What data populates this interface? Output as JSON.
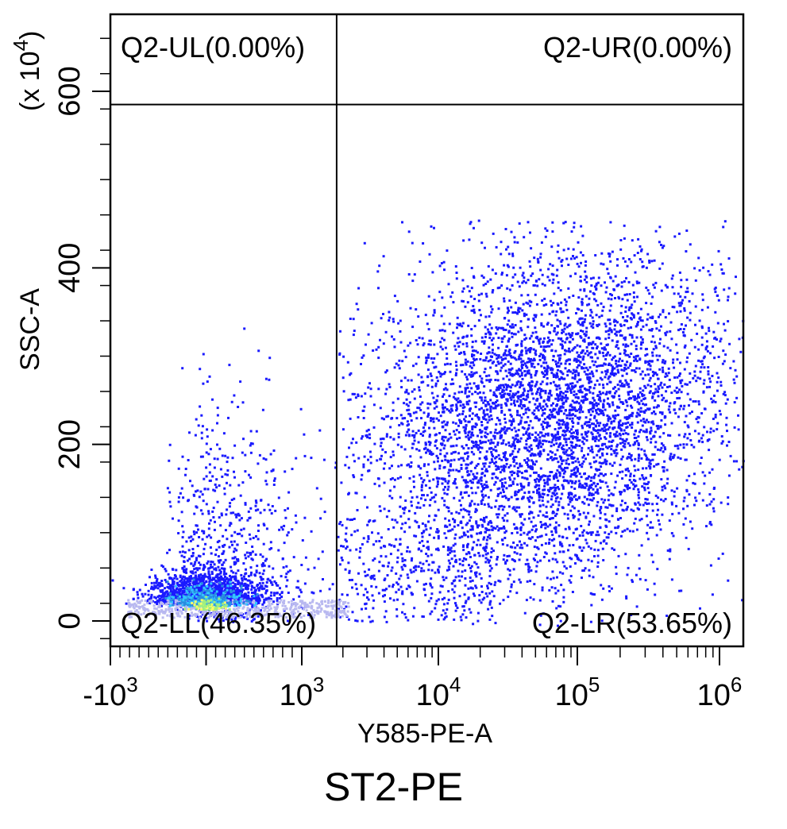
{
  "chart_data": {
    "type": "scatter",
    "subtype": "flow-cytometry-density-dot-plot",
    "xlabel": "Y585-PE-A",
    "ylabel": "SSC-A",
    "y_multiplier_label": "(x 10",
    "y_multiplier_exponent": "4",
    "y_multiplier_close": ")",
    "marker_title": "ST2-PE",
    "x_scale": "biexponential",
    "x_ticks": [
      {
        "base": "-10",
        "exp": "3",
        "value": -1000
      },
      {
        "base": "0",
        "exp": "",
        "value": 0
      },
      {
        "base": "10",
        "exp": "3",
        "value": 1000
      },
      {
        "base": "10",
        "exp": "4",
        "value": 10000
      },
      {
        "base": "10",
        "exp": "5",
        "value": 100000
      },
      {
        "base": "10",
        "exp": "6",
        "value": 1000000
      }
    ],
    "y_ticks": [
      0,
      200,
      400,
      600
    ],
    "ylim": [
      -30,
      700
    ],
    "gates": {
      "x_threshold": 1800,
      "y_threshold": 585
    },
    "quadrants": [
      {
        "name": "Q2-UL",
        "percent": "0.00%",
        "text": "Q2-UL(0.00%)"
      },
      {
        "name": "Q2-UR",
        "percent": "0.00%",
        "text": "Q2-UR(0.00%)"
      },
      {
        "name": "Q2-LL",
        "percent": "46.35%",
        "text": "Q2-LL(46.35%)"
      },
      {
        "name": "Q2-LR",
        "percent": "53.65%",
        "text": "Q2-LR(53.65%)"
      }
    ],
    "populations": [
      {
        "name": "positive-cluster",
        "center_x": 60000,
        "center_y": 230,
        "spread": "broad, ~10^3.5 to 10^6 on x, 0 to 450 on y",
        "share_percent": 53.65
      },
      {
        "name": "negative-cluster",
        "center_x": 0,
        "center_y": 20,
        "spread": "dense near origin with sparse tail to 10^3 and 350 on y",
        "share_percent": 46.35
      }
    ],
    "colors": {
      "low_density": "#1a1aff",
      "mid_density": "#33c6ff",
      "high_density": "#ffff66",
      "gate_line": "#000000"
    }
  }
}
